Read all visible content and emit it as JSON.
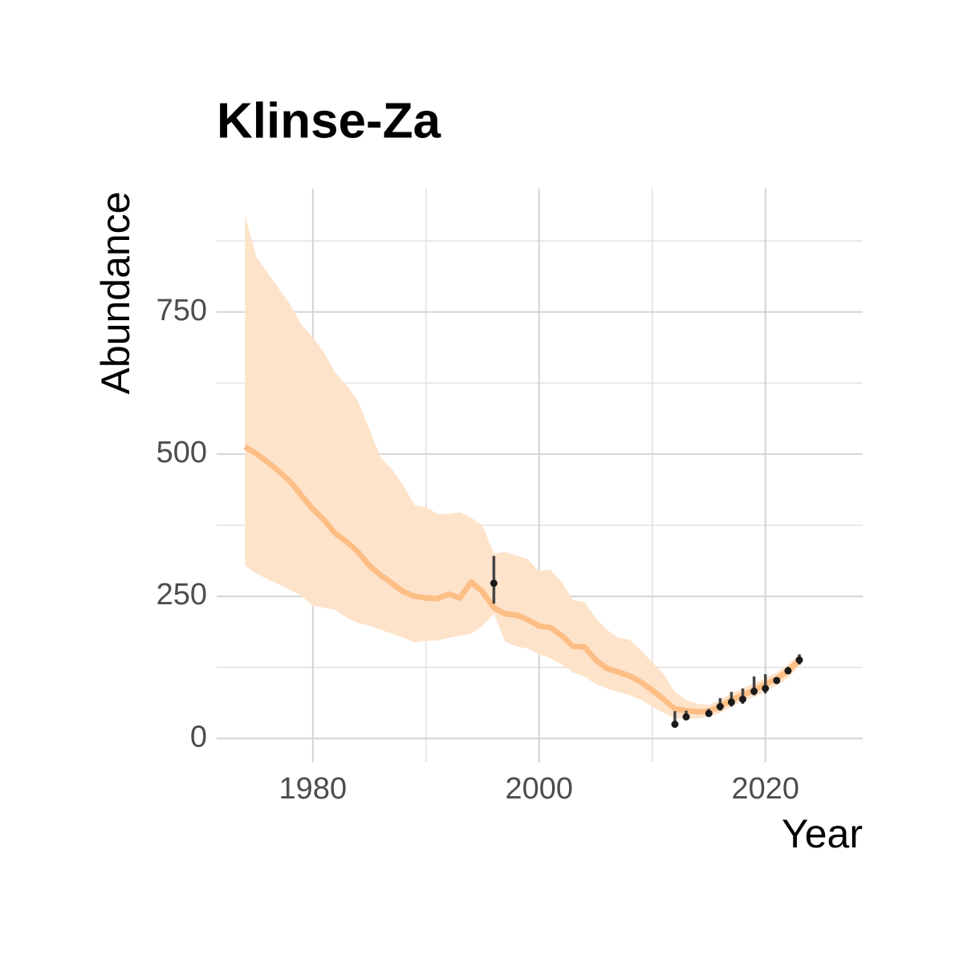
{
  "chart_data": {
    "type": "line",
    "title": "Klinse-Za",
    "x_label": "Year",
    "y_label": "Abundance",
    "xlim": [
      1971.5,
      2028.6
    ],
    "ylim": [
      -42,
      967
    ],
    "xticks": [
      1980,
      2000,
      2020
    ],
    "yticks": [
      0,
      250,
      500,
      750
    ],
    "minor_xticks": [
      1990,
      2010
    ],
    "minor_yticks": [
      125,
      375,
      625,
      875
    ],
    "grid": true,
    "series": [
      {
        "color": "#fdbe85",
        "ribbon_color": "#fee3cb",
        "x": [
          1974,
          1975,
          1976,
          1977,
          1978,
          1979,
          1980,
          1981,
          1982,
          1983,
          1984,
          1985,
          1986,
          1987,
          1988,
          1989,
          1990,
          1991,
          1992,
          1993,
          1994,
          1995,
          1996,
          1997,
          1998,
          1999,
          2000,
          2001,
          2002,
          2003,
          2004,
          2005,
          2006,
          2007,
          2008,
          2009,
          2010,
          2011,
          2012,
          2013,
          2014,
          2015,
          2016,
          2017,
          2018,
          2019,
          2020,
          2021,
          2022,
          2023
        ],
        "values": [
          513,
          501,
          486,
          470,
          452,
          427,
          403,
          384,
          360,
          346,
          328,
          304,
          287,
          273,
          258,
          250,
          247,
          246,
          254,
          247,
          275,
          258,
          230,
          219,
          217,
          209,
          198,
          195,
          181,
          162,
          161,
          138,
          123,
          117,
          110,
          99,
          85,
          69,
          52,
          49,
          47,
          48,
          56,
          68,
          76,
          85,
          95,
          105,
          119,
          138
        ],
        "upper": [
          921,
          847,
          819,
          791,
          763,
          727,
          706,
          678,
          643,
          621,
          593,
          544,
          494,
          473,
          445,
          410,
          407,
          395,
          395,
          398,
          388,
          374,
          325,
          328,
          322,
          315,
          294,
          297,
          275,
          243,
          240,
          212,
          191,
          177,
          174,
          155,
          134,
          113,
          82,
          68,
          61,
          59,
          68,
          79,
          88,
          97,
          106,
          116,
          130,
          148
        ],
        "lower": [
          304,
          290,
          280,
          271,
          261,
          251,
          233,
          230,
          226,
          212,
          203,
          198,
          191,
          184,
          177,
          169,
          172,
          172,
          177,
          181,
          184,
          198,
          219,
          170,
          162,
          158,
          148,
          141,
          130,
          116,
          109,
          96,
          88,
          82,
          76,
          68,
          56,
          45,
          35,
          35,
          35,
          38,
          45,
          56,
          65,
          73,
          82,
          93,
          106,
          127
        ]
      }
    ],
    "points": {
      "color": "#1a1a1a",
      "bar_color": "#444444",
      "x": [
        1996,
        2012,
        2013,
        2015,
        2016,
        2017,
        2018,
        2019,
        2020,
        2021,
        2022,
        2023
      ],
      "values": [
        273,
        25,
        38,
        44,
        56,
        64,
        69,
        83,
        88,
        102,
        119,
        138
      ],
      "lower": [
        237,
        20,
        32,
        38,
        49,
        56,
        61,
        76,
        79,
        96,
        113,
        130
      ],
      "upper": [
        321,
        48,
        49,
        52,
        71,
        82,
        88,
        109,
        113,
        106,
        126,
        148
      ]
    }
  }
}
